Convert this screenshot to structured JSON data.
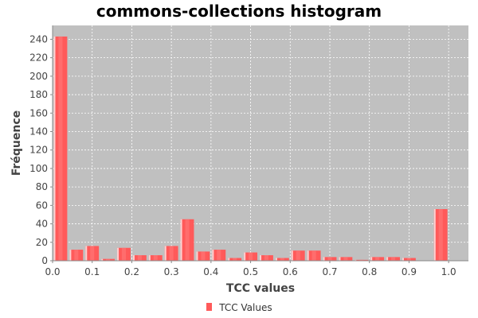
{
  "chart_data": {
    "type": "bar",
    "title": "commons-collections histogram",
    "xlabel": "TCC values",
    "ylabel": "Fréquence",
    "xlim": [
      0.0,
      1.05
    ],
    "ylim": [
      0,
      255
    ],
    "x_ticks": [
      "0.0",
      "0.1",
      "0.2",
      "0.3",
      "0.4",
      "0.5",
      "0.6",
      "0.7",
      "0.8",
      "0.9",
      "1.0"
    ],
    "y_ticks": [
      "0",
      "20",
      "40",
      "60",
      "80",
      "100",
      "120",
      "140",
      "160",
      "180",
      "200",
      "220",
      "240"
    ],
    "grid": true,
    "legend_position": "bottom",
    "series": [
      {
        "name": "TCC Values",
        "color": "#ff5a5a",
        "bin_width": 0.04,
        "bin_starts": [
          0.0,
          0.04,
          0.08,
          0.12,
          0.16,
          0.2,
          0.24,
          0.28,
          0.32,
          0.36,
          0.4,
          0.44,
          0.48,
          0.52,
          0.56,
          0.6,
          0.64,
          0.68,
          0.72,
          0.76,
          0.8,
          0.84,
          0.88,
          0.92,
          0.96
        ],
        "values": [
          243,
          12,
          16,
          2,
          14,
          6,
          6,
          16,
          45,
          10,
          12,
          3,
          9,
          6,
          3,
          11,
          11,
          4,
          4,
          1,
          4,
          4,
          3,
          0,
          56
        ]
      }
    ]
  }
}
